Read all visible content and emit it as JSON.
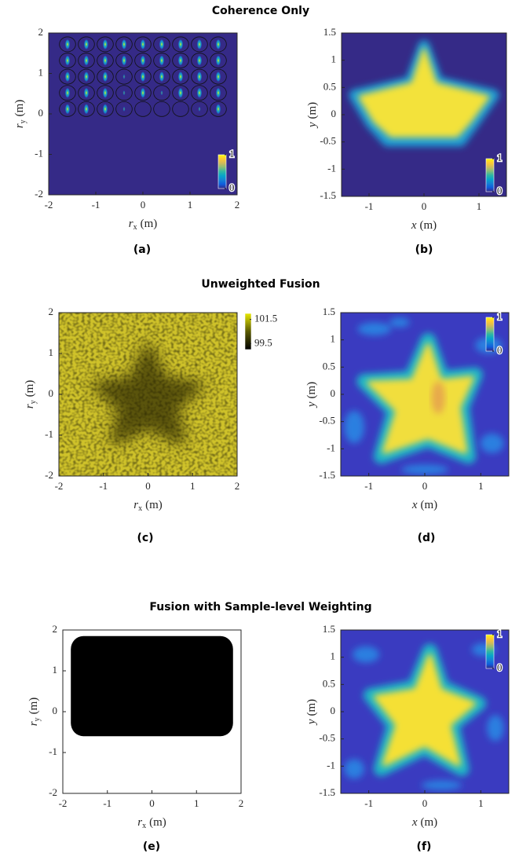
{
  "chart_data": [
    {
      "type": "heatmap",
      "title": "Coherence Only",
      "panel_label": "(a)",
      "xlabel": {
        "symbol": "r",
        "subscript": "x",
        "unit": "(m)"
      },
      "ylabel": {
        "symbol": "r",
        "subscript": "y",
        "unit": "(m)"
      },
      "xlim": [
        -2,
        2
      ],
      "xticks": [
        -2,
        -1,
        0,
        1,
        2
      ],
      "ylim": [
        -2,
        2
      ],
      "yticks": [
        -2,
        -1,
        0,
        1,
        2
      ],
      "colorbar": {
        "colors": [
          "#352a87",
          "#0f5cdd",
          "#1481d6",
          "#06a4ca",
          "#2eb7a4",
          "#87bf77",
          "#d1bb59",
          "#fec832",
          "#f9fb0e"
        ],
        "clim": [
          0,
          1
        ],
        "ticks": [
          0,
          1
        ]
      }
    },
    {
      "type": "heatmap",
      "panel_label": "(b)",
      "xlabel": {
        "symbol": "x",
        "unit": "(m)"
      },
      "ylabel": {
        "symbol": "y",
        "unit": "(m)"
      },
      "xlim": [
        -1.5,
        1.5
      ],
      "xticks": [
        -1,
        0,
        1
      ],
      "ylim": [
        -1.5,
        1.5
      ],
      "yticks": [
        -1.5,
        -1,
        -0.5,
        0,
        0.5,
        1,
        1.5
      ],
      "colorbar": {
        "colors": [
          "#352a87",
          "#0f5cdd",
          "#1481d6",
          "#06a4ca",
          "#2eb7a4",
          "#87bf77",
          "#d1bb59",
          "#fec832",
          "#f9fb0e"
        ],
        "clim": [
          0,
          1
        ],
        "ticks": [
          0,
          1
        ]
      }
    },
    {
      "type": "heatmap",
      "title": "Unweighted Fusion",
      "panel_label": "(c)",
      "xlabel": {
        "symbol": "r",
        "subscript": "x",
        "unit": "(m)"
      },
      "ylabel": {
        "symbol": "r",
        "subscript": "y",
        "unit": "(m)"
      },
      "xlim": [
        -2,
        2
      ],
      "xticks": [
        -2,
        -1,
        0,
        1,
        2
      ],
      "ylim": [
        -2,
        2
      ],
      "yticks": [
        -2,
        -1,
        0,
        1,
        2
      ],
      "colorbar": {
        "colors": [
          "#000000",
          "#5a5a00",
          "#e8e800"
        ],
        "clim": [
          99,
          102
        ],
        "ticks": [
          99.5,
          101.5
        ]
      }
    },
    {
      "type": "heatmap",
      "panel_label": "(d)",
      "xlabel": {
        "symbol": "x",
        "unit": "(m)"
      },
      "ylabel": {
        "symbol": "y",
        "unit": "(m)"
      },
      "xlim": [
        -1.5,
        1.5
      ],
      "xticks": [
        -1,
        0,
        1
      ],
      "ylim": [
        -1.5,
        1.5
      ],
      "yticks": [
        -1.5,
        -1,
        -0.5,
        0,
        0.5,
        1,
        1.5
      ],
      "colorbar": {
        "colors": [
          "#352a87",
          "#0f5cdd",
          "#1481d6",
          "#06a4ca",
          "#2eb7a4",
          "#87bf77",
          "#d1bb59",
          "#fec832",
          "#f9fb0e"
        ],
        "clim": [
          0,
          1
        ],
        "ticks": [
          0,
          1
        ]
      }
    },
    {
      "type": "heatmap",
      "title": "Fusion with Sample-level Weighting",
      "panel_label": "(e)",
      "xlabel": {
        "symbol": "r",
        "subscript": "x",
        "unit": "(m)"
      },
      "ylabel": {
        "symbol": "r",
        "subscript": "y",
        "unit": "(m)"
      },
      "xlim": [
        -2,
        2
      ],
      "xticks": [
        -2,
        -1,
        0,
        1,
        2
      ],
      "ylim": [
        -2,
        2
      ],
      "yticks": [
        -2,
        -1,
        0,
        1,
        2
      ]
    },
    {
      "type": "heatmap",
      "panel_label": "(f)",
      "xlabel": {
        "symbol": "x",
        "unit": "(m)"
      },
      "ylabel": {
        "symbol": "y",
        "unit": "(m)"
      },
      "xlim": [
        -1.5,
        1.5
      ],
      "xticks": [
        -1,
        0,
        1
      ],
      "ylim": [
        -1.5,
        1.5
      ],
      "yticks": [
        -1.5,
        -1,
        -0.5,
        0,
        0.5,
        1,
        1.5
      ],
      "colorbar": {
        "colors": [
          "#352a87",
          "#0f5cdd",
          "#1481d6",
          "#06a4ca",
          "#2eb7a4",
          "#87bf77",
          "#d1bb59",
          "#fec832",
          "#f9fb0e"
        ],
        "clim": [
          0,
          1
        ],
        "ticks": [
          0,
          1
        ]
      }
    }
  ]
}
